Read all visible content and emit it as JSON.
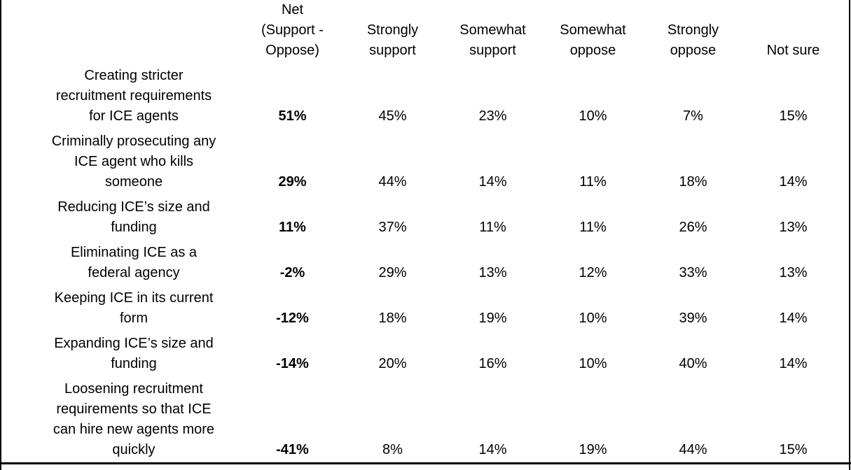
{
  "table": {
    "columns": [
      "Net\n(Support -\nOppose)",
      "Strongly\nsupport",
      "Somewhat\nsupport",
      "Somewhat\noppose",
      "Strongly\noppose",
      "Not sure"
    ],
    "rows": [
      {
        "label": "Creating stricter\nrecruitment requirements\nfor ICE agents",
        "values": [
          "51%",
          "45%",
          "23%",
          "10%",
          "7%",
          "15%"
        ]
      },
      {
        "label": "Criminally prosecuting any\nICE agent who kills\nsomeone",
        "values": [
          "29%",
          "44%",
          "14%",
          "11%",
          "18%",
          "14%"
        ]
      },
      {
        "label": "Reducing ICE’s size and\nfunding",
        "values": [
          "11%",
          "37%",
          "11%",
          "11%",
          "26%",
          "13%"
        ]
      },
      {
        "label": "Eliminating ICE as a\nfederal agency",
        "values": [
          "-2%",
          "29%",
          "13%",
          "12%",
          "33%",
          "13%"
        ]
      },
      {
        "label": "Keeping ICE in its current\nform",
        "values": [
          "-12%",
          "18%",
          "19%",
          "10%",
          "39%",
          "14%"
        ]
      },
      {
        "label": "Expanding ICE’s size and\nfunding",
        "values": [
          "-14%",
          "20%",
          "16%",
          "10%",
          "40%",
          "14%"
        ]
      },
      {
        "label": "Loosening recruitment\nrequirements so that ICE\ncan hire new agents more\nquickly",
        "values": [
          "-41%",
          "8%",
          "14%",
          "19%",
          "44%",
          "15%"
        ]
      }
    ]
  },
  "chart_data": {
    "type": "table",
    "title": "",
    "unit": "%",
    "categories": [
      "Creating stricter recruitment requirements for ICE agents",
      "Criminally prosecuting any ICE agent who kills someone",
      "Reducing ICE’s size and funding",
      "Eliminating ICE as a federal agency",
      "Keeping ICE in its current form",
      "Expanding ICE’s size and funding",
      "Loosening recruitment requirements so that ICE can hire new agents more quickly"
    ],
    "series": [
      {
        "name": "Net (Support - Oppose)",
        "values": [
          51,
          29,
          11,
          -2,
          -12,
          -14,
          -41
        ]
      },
      {
        "name": "Strongly support",
        "values": [
          45,
          44,
          37,
          29,
          18,
          20,
          8
        ]
      },
      {
        "name": "Somewhat support",
        "values": [
          23,
          14,
          11,
          13,
          19,
          16,
          14
        ]
      },
      {
        "name": "Somewhat oppose",
        "values": [
          10,
          11,
          11,
          12,
          10,
          10,
          19
        ]
      },
      {
        "name": "Strongly oppose",
        "values": [
          7,
          18,
          26,
          33,
          39,
          40,
          44
        ]
      },
      {
        "name": "Not sure",
        "values": [
          15,
          14,
          13,
          13,
          14,
          14,
          15
        ]
      }
    ]
  }
}
